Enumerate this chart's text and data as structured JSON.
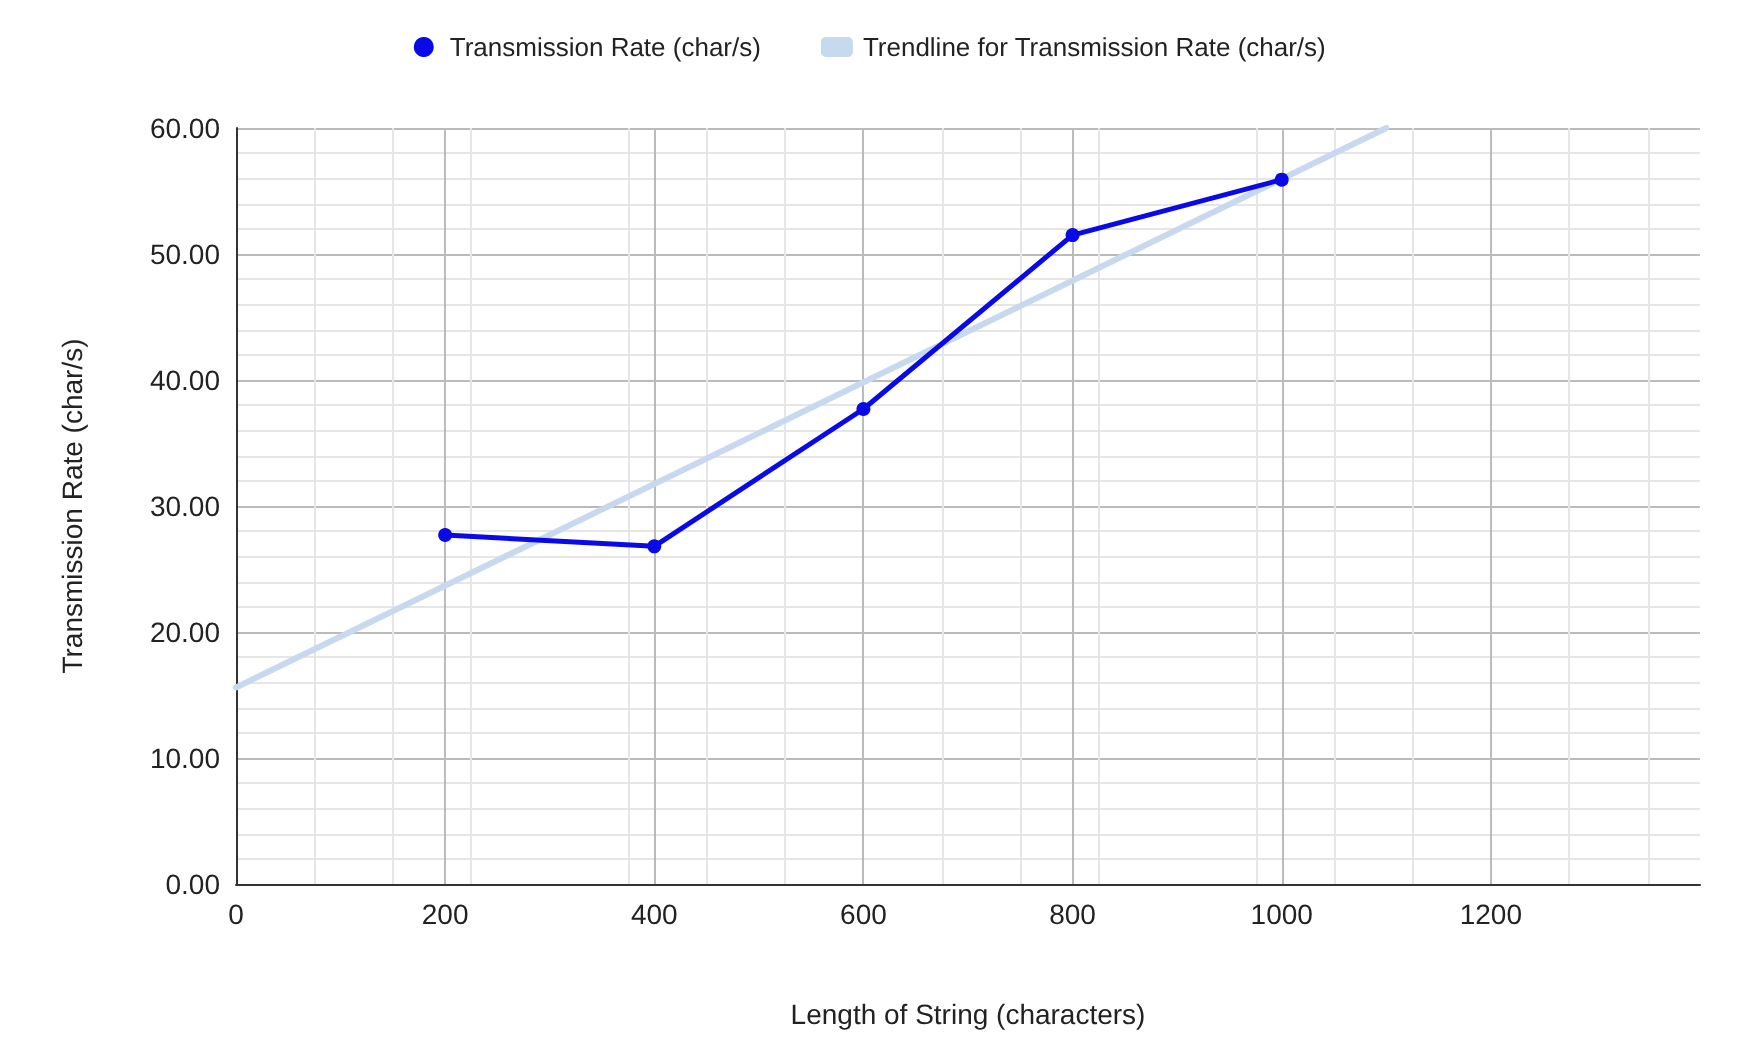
{
  "chart_data": {
    "type": "line",
    "xlabel": "Length of String (characters)",
    "ylabel": "Transmission Rate (char/s)",
    "series": [
      {
        "name": "Transmission Rate (char/s)",
        "color": "#0a0ae6",
        "x": [
          200,
          400,
          600,
          800,
          1000
        ],
        "values": [
          27.7,
          26.8,
          37.7,
          51.5,
          55.9
        ],
        "marker": "circle"
      },
      {
        "name": "Trendline for Transmission Rate (char/s)",
        "color": "#c6d9ee",
        "x": [
          0,
          1100
        ],
        "values": [
          15.6,
          60
        ],
        "marker": "none"
      }
    ],
    "xlim": [
      0,
      1400
    ],
    "xticks": [
      0,
      200,
      400,
      600,
      800,
      1000,
      1200
    ],
    "ylim": [
      0,
      60
    ],
    "yticks": [
      {
        "value": 0,
        "label": "0.00"
      },
      {
        "value": 10,
        "label": "10.00"
      },
      {
        "value": 20,
        "label": "20.00"
      },
      {
        "value": 30,
        "label": "30.00"
      },
      {
        "value": 40,
        "label": "40.00"
      },
      {
        "value": 50,
        "label": "50.00"
      },
      {
        "value": 60,
        "label": "60.00"
      }
    ],
    "grid": true,
    "legend": "top",
    "line_style": "solid"
  }
}
